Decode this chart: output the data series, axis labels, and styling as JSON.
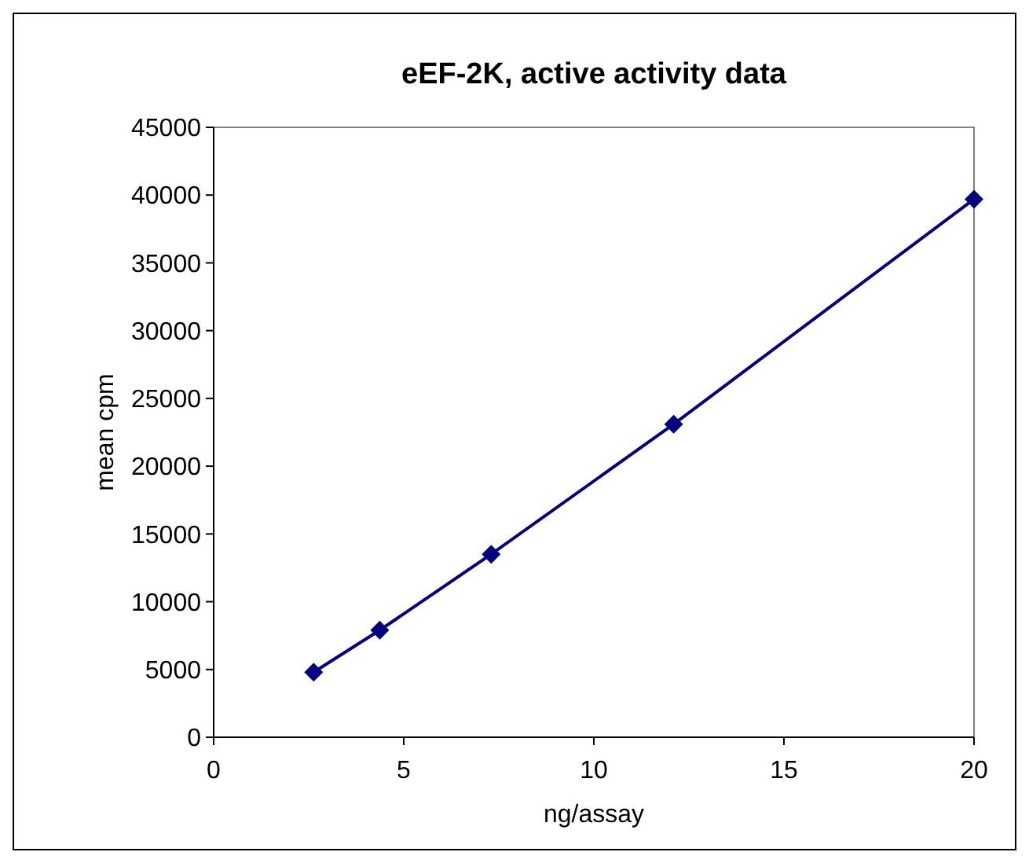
{
  "chart_data": {
    "type": "line",
    "title": "eEF-2K, active activity data",
    "xlabel": "ng/assay",
    "ylabel": "mean cpm",
    "x": [
      2.63,
      4.37,
      7.3,
      12.1,
      20
    ],
    "series": [
      {
        "color": "#000080",
        "values": [
          4800,
          7900,
          13500,
          23100,
          39700
        ]
      }
    ],
    "xlim": [
      0,
      20
    ],
    "xticks": [
      0,
      5,
      10,
      15,
      20
    ],
    "ylim": [
      0,
      45000
    ],
    "yticks": [
      0,
      5000,
      10000,
      15000,
      20000,
      25000,
      30000,
      35000,
      40000,
      45000
    ],
    "marker": "diamond",
    "line_style": "solid"
  }
}
